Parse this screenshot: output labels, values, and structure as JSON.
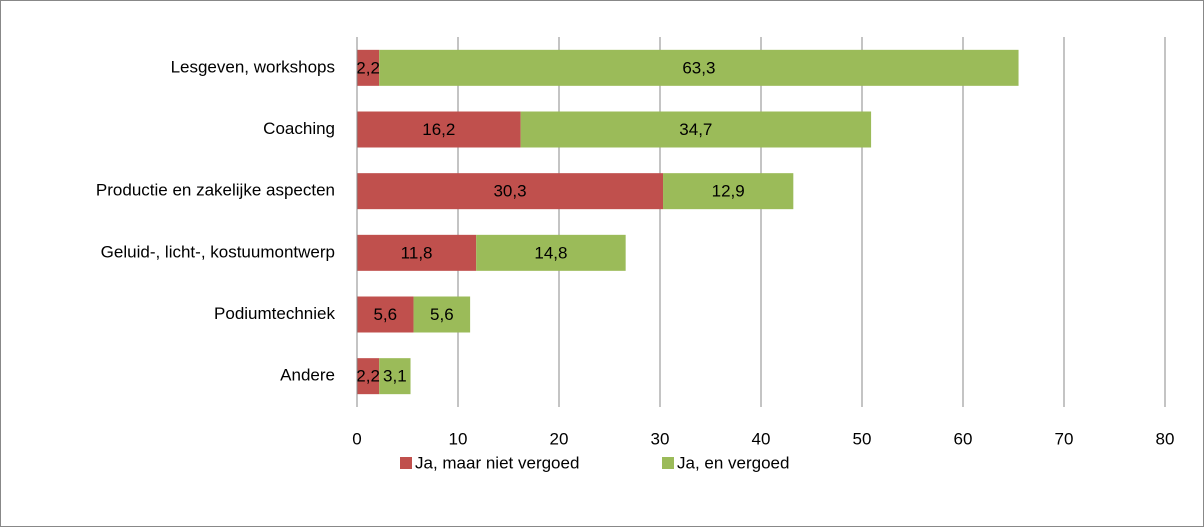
{
  "chart_data": {
    "type": "stacked_barh",
    "categories": [
      "Lesgeven, workshops",
      "Coaching",
      "Productie en zakelijke aspecten",
      "Geluid-, licht-, kostuumontwerp",
      "Podiumtechniek",
      "Andere"
    ],
    "series": [
      {
        "name": "Ja, maar niet vergoed",
        "color": "#c0504d",
        "values": [
          2.2,
          16.2,
          30.3,
          11.8,
          5.6,
          2.2
        ],
        "value_labels": [
          "2,2",
          "16,2",
          "30,3",
          "11,8",
          "5,6",
          "2,2"
        ]
      },
      {
        "name": "Ja, en vergoed",
        "color": "#9bbb59",
        "values": [
          63.3,
          34.7,
          12.9,
          14.8,
          5.6,
          3.1
        ],
        "value_labels": [
          "63,3",
          "34,7",
          "12,9",
          "14,8",
          "5,6",
          "3,1"
        ]
      }
    ],
    "xlim": [
      0,
      80
    ],
    "xticks": [
      0,
      10,
      20,
      30,
      40,
      50,
      60,
      70,
      80
    ],
    "grid": true
  }
}
